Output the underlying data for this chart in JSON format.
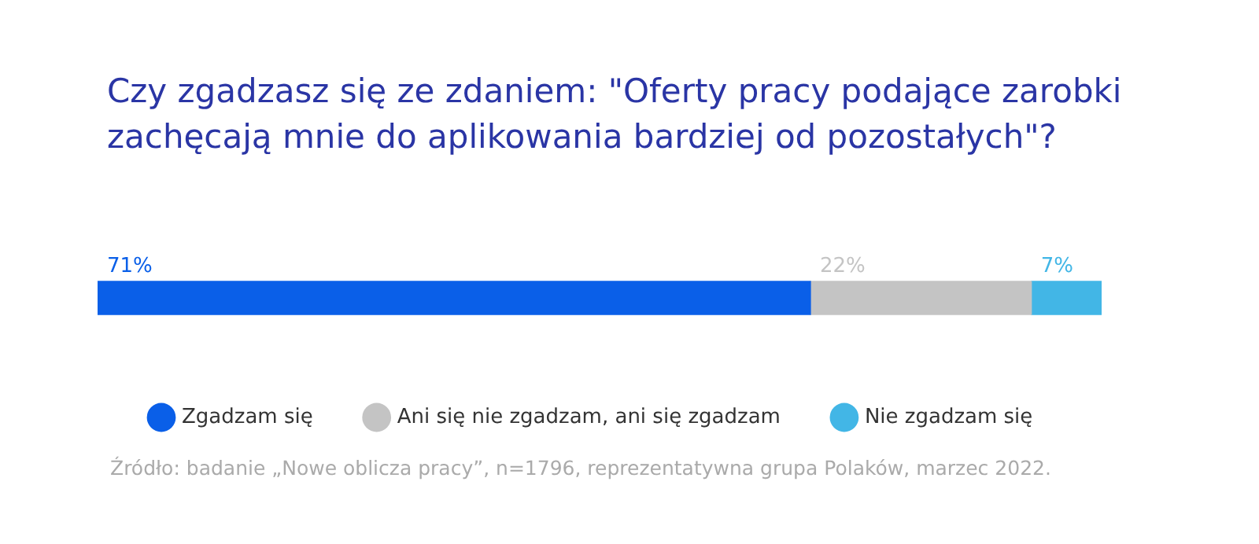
{
  "chart_data": {
    "type": "bar",
    "orientation": "horizontal",
    "stacked": true,
    "title": "Czy zgadzasz się ze zdaniem: \"Oferty pracy podające zarobki zachęcają mnie do aplikowania bardziej od pozostałych\"?",
    "categories": [
      null
    ],
    "grid": false,
    "legend": "bottom",
    "marker": "circle",
    "series": [
      {
        "name": "Zgadzam się",
        "color": "#0a5fe8",
        "values": [
          71
        ],
        "value_labels": [
          "71%"
        ]
      },
      {
        "name": "Ani się nie zgadzam, ani się zgadzam",
        "color": "#c4c4c4",
        "values": [
          22
        ],
        "value_labels": [
          "22%"
        ]
      },
      {
        "name": "Nie zgadzam się",
        "color": "#42b6e6",
        "values": [
          7
        ],
        "value_labels": [
          "7%"
        ]
      }
    ],
    "annotations": [
      "Źródło: badanie „Nowe oblicza pracy”, n=1796, reprezentatywna grupa Polaków, marzec 2022."
    ]
  }
}
